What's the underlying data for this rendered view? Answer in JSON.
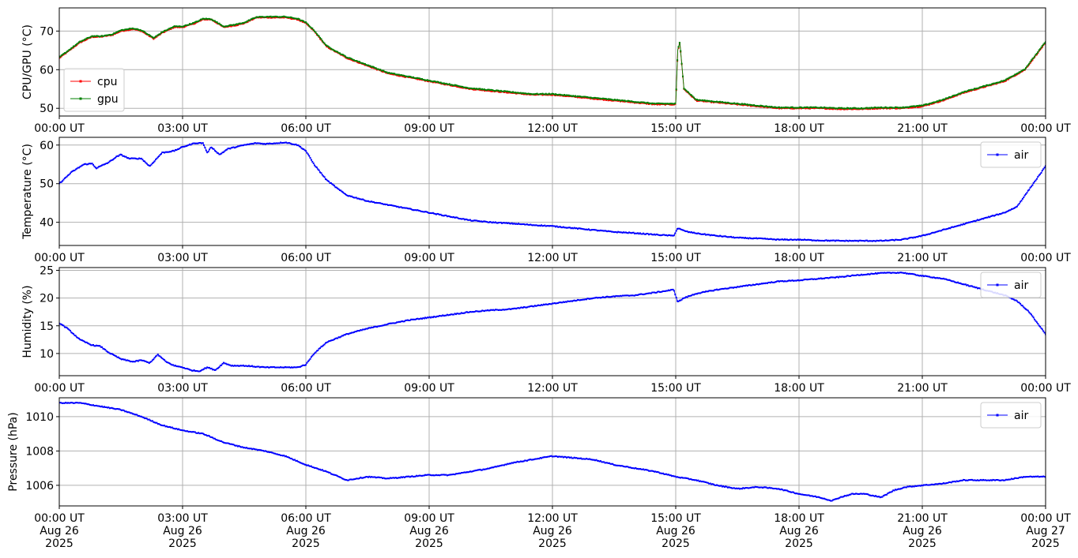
{
  "chart_data": [
    {
      "type": "line",
      "ylabel": "CPU/GPU (°C)",
      "ylim": [
        48,
        76
      ],
      "yticks": [
        50,
        60,
        70
      ],
      "xlim": [
        0,
        24
      ],
      "x_tick_labels": [
        "00:00 UT",
        "03:00 UT",
        "06:00 UT",
        "09:00 UT",
        "12:00 UT",
        "15:00 UT",
        "18:00 UT",
        "21:00 UT",
        "00:00 UT"
      ],
      "grid": true,
      "legend": "lower-left",
      "series": [
        {
          "name": "cpu",
          "color": "#ff0000",
          "x": [
            0,
            0.5,
            0.8,
            1,
            1.3,
            1.5,
            1.8,
            2.0,
            2.3,
            2.5,
            2.8,
            3.0,
            3.3,
            3.5,
            3.7,
            4.0,
            4.3,
            4.5,
            4.8,
            5.0,
            5.3,
            5.5,
            5.8,
            6.0,
            6.2,
            6.5,
            7.0,
            7.5,
            8.0,
            8.5,
            9.0,
            9.5,
            10.0,
            10.5,
            11.0,
            11.5,
            12.0,
            12.5,
            13.0,
            13.5,
            14.0,
            14.5,
            14.9,
            15.0,
            15.05,
            15.1,
            15.2,
            15.5,
            16.0,
            16.5,
            17.0,
            17.5,
            18.0,
            18.5,
            19.0,
            19.5,
            20.0,
            20.5,
            21.0,
            21.5,
            22.0,
            22.5,
            23.0,
            23.5,
            24.0
          ],
          "y": [
            63,
            67,
            68.5,
            68.5,
            69,
            70,
            70.5,
            70,
            68,
            69.5,
            71,
            71,
            72,
            73,
            73,
            71,
            71.5,
            72,
            73.5,
            73.5,
            73.5,
            73.5,
            73,
            72,
            70,
            66,
            63,
            61,
            59,
            58,
            57,
            56,
            55,
            54.5,
            54,
            53.5,
            53.5,
            53,
            52.5,
            52,
            51.5,
            51,
            51,
            51,
            65,
            67,
            55,
            52,
            51.5,
            51,
            50.5,
            50,
            50,
            50,
            49.8,
            49.8,
            50,
            50,
            50.5,
            52,
            54,
            55.5,
            57,
            60,
            67
          ]
        },
        {
          "name": "gpu",
          "color": "#008000",
          "x": [
            0,
            0.5,
            0.8,
            1,
            1.3,
            1.5,
            1.8,
            2.0,
            2.3,
            2.5,
            2.8,
            3.0,
            3.3,
            3.5,
            3.7,
            4.0,
            4.3,
            4.5,
            4.8,
            5.0,
            5.3,
            5.5,
            5.8,
            6.0,
            6.2,
            6.5,
            7.0,
            7.5,
            8.0,
            8.5,
            9.0,
            9.5,
            10.0,
            10.5,
            11.0,
            11.5,
            12.0,
            12.5,
            13.0,
            13.5,
            14.0,
            14.5,
            14.9,
            15.0,
            15.05,
            15.1,
            15.2,
            15.5,
            16.0,
            16.5,
            17.0,
            17.5,
            18.0,
            18.5,
            19.0,
            19.5,
            20.0,
            20.5,
            21.0,
            21.5,
            22.0,
            22.5,
            23.0,
            23.5,
            24.0
          ],
          "y": [
            63.2,
            67.2,
            68.7,
            68.6,
            69.2,
            70.2,
            70.7,
            70.2,
            68.2,
            69.7,
            71.2,
            71.2,
            72.2,
            73.2,
            73.1,
            71.2,
            71.7,
            72.2,
            73.6,
            73.7,
            73.7,
            73.7,
            73.2,
            72.2,
            70.2,
            66.2,
            63.2,
            61.2,
            59.2,
            58.2,
            57.2,
            56.2,
            55.2,
            54.7,
            54.2,
            53.7,
            53.7,
            53.2,
            52.7,
            52.2,
            51.7,
            51.2,
            51.2,
            51.2,
            65.2,
            67.2,
            55.2,
            52.2,
            51.7,
            51.2,
            50.7,
            50.2,
            50.2,
            50.2,
            50,
            50,
            50.2,
            50.2,
            50.7,
            52.2,
            54.2,
            55.7,
            57.2,
            60.2,
            67.2
          ]
        }
      ]
    },
    {
      "type": "line",
      "ylabel": "Temperature (°C)",
      "ylim": [
        34,
        62
      ],
      "yticks": [
        40,
        50,
        60
      ],
      "xlim": [
        0,
        24
      ],
      "x_tick_labels": [
        "00:00 UT",
        "03:00 UT",
        "06:00 UT",
        "09:00 UT",
        "12:00 UT",
        "15:00 UT",
        "18:00 UT",
        "21:00 UT",
        "00:00 UT"
      ],
      "grid": true,
      "legend": "upper-right",
      "series": [
        {
          "name": "air",
          "color": "#0000ff",
          "x": [
            0,
            0.3,
            0.6,
            0.8,
            0.9,
            1.2,
            1.4,
            1.5,
            1.7,
            2.0,
            2.2,
            2.5,
            2.8,
            3.0,
            3.3,
            3.5,
            3.6,
            3.7,
            3.9,
            4.1,
            4.3,
            4.5,
            4.8,
            5.0,
            5.3,
            5.5,
            5.8,
            6.0,
            6.2,
            6.5,
            6.8,
            7.0,
            7.5,
            8.0,
            8.5,
            9.0,
            9.5,
            10.0,
            10.5,
            11.0,
            11.5,
            12.0,
            12.5,
            13.0,
            13.5,
            14.0,
            14.5,
            14.95,
            15.05,
            15.15,
            15.3,
            15.6,
            16.0,
            16.5,
            17.0,
            17.5,
            18.0,
            18.5,
            19.0,
            19.5,
            20.0,
            20.5,
            21.0,
            21.5,
            22.0,
            22.5,
            23.0,
            23.3,
            23.6,
            24.0
          ],
          "y": [
            50,
            53,
            55,
            55.2,
            54,
            55.5,
            57,
            57.5,
            56.5,
            56.5,
            54.5,
            58,
            58.5,
            59.5,
            60.5,
            60.5,
            58,
            59.5,
            57.5,
            59,
            59.5,
            60,
            60.5,
            60.3,
            60.5,
            60.7,
            60,
            58.5,
            55,
            51,
            48.5,
            47,
            45.5,
            44.5,
            43.5,
            42.5,
            41.5,
            40.5,
            40,
            39.7,
            39.3,
            39,
            38.5,
            38,
            37.5,
            37.2,
            36.8,
            36.5,
            38.5,
            38,
            37.5,
            37,
            36.5,
            36,
            35.8,
            35.5,
            35.5,
            35.3,
            35.2,
            35.2,
            35.2,
            35.5,
            36.5,
            38,
            39.5,
            41,
            42.5,
            44,
            48.5,
            54.5
          ]
        }
      ]
    },
    {
      "type": "line",
      "ylabel": "Humidity (%)",
      "ylim": [
        6,
        25.5
      ],
      "yticks": [
        10,
        15,
        20,
        25
      ],
      "xlim": [
        0,
        24
      ],
      "x_tick_labels": [
        "00:00 UT",
        "03:00 UT",
        "06:00 UT",
        "09:00 UT",
        "12:00 UT",
        "15:00 UT",
        "18:00 UT",
        "21:00 UT",
        "00:00 UT"
      ],
      "grid": true,
      "legend": "upper-right",
      "series": [
        {
          "name": "air",
          "color": "#0000ff",
          "x": [
            0,
            0.2,
            0.5,
            0.8,
            1.0,
            1.2,
            1.5,
            1.8,
            2.0,
            2.2,
            2.4,
            2.6,
            2.8,
            3.0,
            3.2,
            3.4,
            3.6,
            3.8,
            4.0,
            4.2,
            4.5,
            5.0,
            5.5,
            5.8,
            6.0,
            6.2,
            6.5,
            7.0,
            7.5,
            8.0,
            8.5,
            9.0,
            9.5,
            10.0,
            10.5,
            11.0,
            11.5,
            12.0,
            12.5,
            13.0,
            13.5,
            14.0,
            14.5,
            14.95,
            15.05,
            15.2,
            15.5,
            16.0,
            16.5,
            17.0,
            17.5,
            18.0,
            18.5,
            19.0,
            19.5,
            20.0,
            20.5,
            21.0,
            21.5,
            22.0,
            22.5,
            23.0,
            23.3,
            23.6,
            24.0
          ],
          "y": [
            15.5,
            14.5,
            12.5,
            11.5,
            11.3,
            10.2,
            9,
            8.5,
            8.8,
            8.3,
            9.8,
            8.5,
            7.8,
            7.5,
            7,
            6.8,
            7.5,
            7,
            8.3,
            7.8,
            7.8,
            7.5,
            7.5,
            7.5,
            8,
            10,
            12,
            13.5,
            14.5,
            15.3,
            16,
            16.5,
            17,
            17.5,
            17.8,
            18,
            18.5,
            19,
            19.5,
            20,
            20.3,
            20.5,
            21,
            21.5,
            19.3,
            20,
            20.8,
            21.5,
            22,
            22.5,
            23,
            23.2,
            23.5,
            23.8,
            24.2,
            24.5,
            24.6,
            24,
            23.5,
            22.5,
            21.5,
            20.5,
            19.5,
            17.5,
            13.5
          ]
        }
      ]
    },
    {
      "type": "line",
      "ylabel": "Pressure (hPa)",
      "ylim": [
        1004.8,
        1011.1
      ],
      "yticks": [
        1006,
        1008,
        1010
      ],
      "xlim": [
        0,
        24
      ],
      "x_tick_labels": [
        [
          "00:00 UT",
          "Aug 26",
          "2025"
        ],
        [
          "03:00 UT",
          "Aug 26",
          "2025"
        ],
        [
          "06:00 UT",
          "Aug 26",
          "2025"
        ],
        [
          "09:00 UT",
          "Aug 26",
          "2025"
        ],
        [
          "12:00 UT",
          "Aug 26",
          "2025"
        ],
        [
          "15:00 UT",
          "Aug 26",
          "2025"
        ],
        [
          "18:00 UT",
          "Aug 26",
          "2025"
        ],
        [
          "21:00 UT",
          "Aug 26",
          "2025"
        ],
        [
          "00:00 UT",
          "Aug 27",
          "2025"
        ]
      ],
      "grid": true,
      "legend": "upper-right",
      "series": [
        {
          "name": "air",
          "color": "#0000ff",
          "x": [
            0,
            0.5,
            1,
            1.5,
            2,
            2.5,
            3,
            3.5,
            4,
            4.5,
            5,
            5.5,
            6,
            6.5,
            7,
            7.5,
            8,
            8.5,
            9,
            9.5,
            10,
            10.5,
            11,
            11.5,
            12,
            12.5,
            13,
            13.5,
            14,
            14.5,
            15,
            15.5,
            16,
            16.5,
            17,
            17.5,
            18,
            18.5,
            18.8,
            19,
            19.3,
            19.6,
            20,
            20.3,
            20.6,
            21,
            21.5,
            22,
            22.5,
            23,
            23.5,
            24
          ],
          "y": [
            1010.8,
            1010.8,
            1010.6,
            1010.4,
            1010,
            1009.5,
            1009.2,
            1009,
            1008.5,
            1008.2,
            1008,
            1007.7,
            1007.2,
            1006.8,
            1006.3,
            1006.5,
            1006.4,
            1006.5,
            1006.6,
            1006.6,
            1006.8,
            1007,
            1007.3,
            1007.5,
            1007.7,
            1007.6,
            1007.5,
            1007.2,
            1007,
            1006.8,
            1006.5,
            1006.3,
            1006,
            1005.8,
            1005.9,
            1005.8,
            1005.5,
            1005.3,
            1005.1,
            1005.3,
            1005.5,
            1005.5,
            1005.3,
            1005.7,
            1005.9,
            1006,
            1006.1,
            1006.3,
            1006.3,
            1006.3,
            1006.5,
            1006.5
          ]
        }
      ]
    }
  ]
}
